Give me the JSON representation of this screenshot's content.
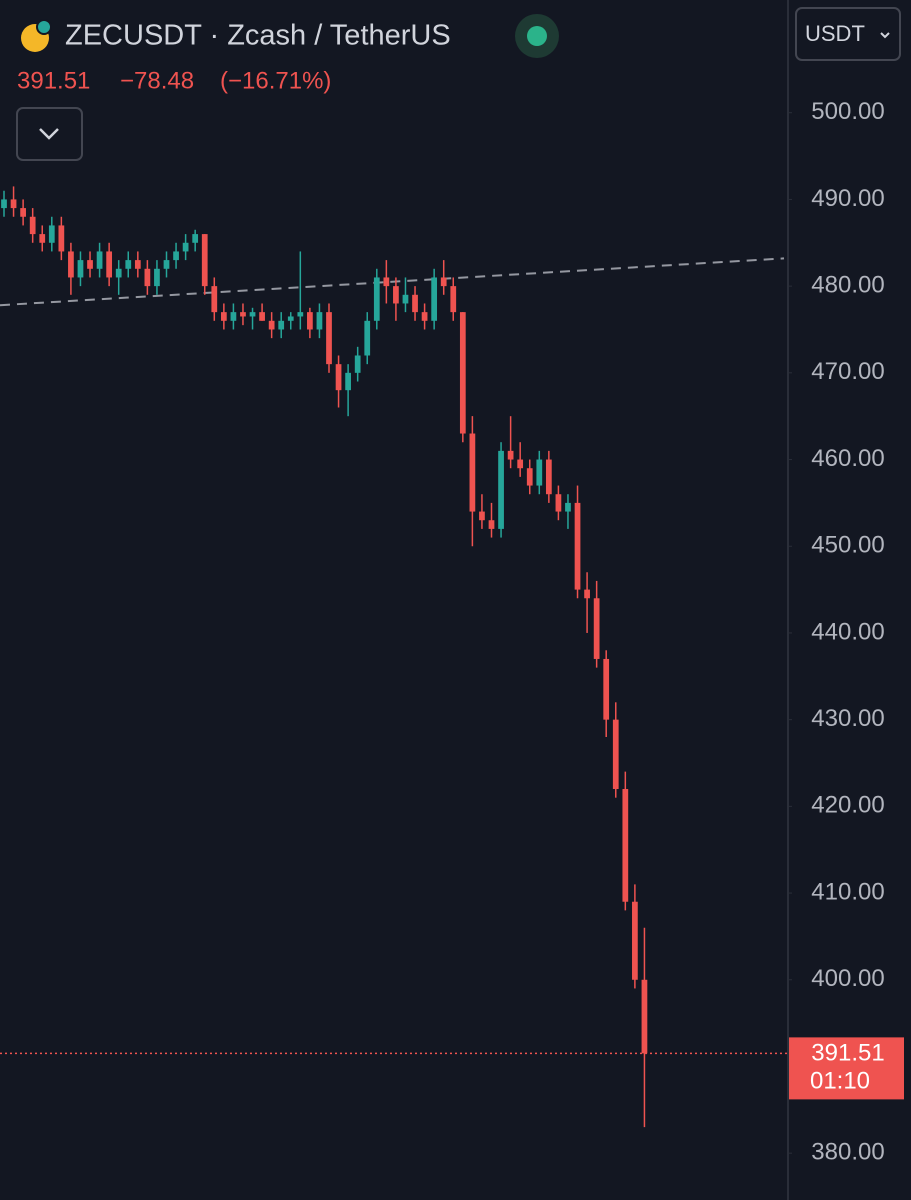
{
  "header": {
    "symbol": "ZECUSDT · Zcash / TetherUS",
    "price": "391.51",
    "change": "−78.48",
    "change_pct": "(−16.71%)",
    "currency": "USDT"
  },
  "chart_data": {
    "type": "candlestick",
    "up_color": "#26a69a",
    "down_color": "#ef5350",
    "grid": false,
    "ylim": [
      374.6,
      513.0
    ],
    "yticks": [
      {
        "value": 380,
        "label": "380.00"
      },
      {
        "value": 390,
        "label": "390.00"
      },
      {
        "value": 400,
        "label": "400.00"
      },
      {
        "value": 410,
        "label": "410.00"
      },
      {
        "value": 420,
        "label": "420.00"
      },
      {
        "value": 430,
        "label": "430.00"
      },
      {
        "value": 440,
        "label": "440.00"
      },
      {
        "value": 450,
        "label": "450.00"
      },
      {
        "value": 460,
        "label": "460.00"
      },
      {
        "value": 470,
        "label": "470.00"
      },
      {
        "value": 480,
        "label": "480.00"
      },
      {
        "value": 490,
        "label": "490.00"
      },
      {
        "value": 500,
        "label": "500.00"
      }
    ],
    "trendline": [
      477.8,
      483.2
    ],
    "countdown": "01:10",
    "ohlc": [
      [
        489,
        491,
        488,
        490
      ],
      [
        490,
        491.5,
        488,
        489
      ],
      [
        489,
        490,
        487,
        488
      ],
      [
        488,
        489,
        485,
        486
      ],
      [
        486,
        487,
        484,
        485
      ],
      [
        485,
        488,
        484,
        487
      ],
      [
        487,
        488,
        483,
        484
      ],
      [
        484,
        485,
        479,
        481
      ],
      [
        481,
        484,
        480,
        483
      ],
      [
        483,
        484,
        481,
        482
      ],
      [
        482,
        485,
        481,
        484
      ],
      [
        484,
        485,
        480,
        481
      ],
      [
        481,
        483,
        479,
        482
      ],
      [
        482,
        484,
        481,
        483
      ],
      [
        483,
        484,
        481,
        482
      ],
      [
        482,
        483,
        479,
        480
      ],
      [
        480,
        483,
        479,
        482
      ],
      [
        482,
        484,
        481,
        483
      ],
      [
        483,
        485,
        482,
        484
      ],
      [
        484,
        486,
        483,
        485
      ],
      [
        485,
        486.5,
        484,
        486
      ],
      [
        486,
        486,
        479,
        480
      ],
      [
        480,
        481,
        476,
        477
      ],
      [
        477,
        478,
        475,
        476
      ],
      [
        476,
        478,
        475,
        477
      ],
      [
        477,
        478,
        475.5,
        476.5
      ],
      [
        476.5,
        477.5,
        475,
        477
      ],
      [
        477,
        478,
        476,
        476
      ],
      [
        476,
        477,
        474,
        475
      ],
      [
        475,
        477,
        474,
        476
      ],
      [
        476,
        477,
        475,
        476.5
      ],
      [
        476.5,
        484,
        475,
        477
      ],
      [
        477,
        477.5,
        474,
        475
      ],
      [
        475,
        478,
        474,
        477
      ],
      [
        477,
        478,
        470,
        471
      ],
      [
        471,
        472,
        466,
        468
      ],
      [
        468,
        471,
        465,
        470
      ],
      [
        470,
        473,
        469,
        472
      ],
      [
        472,
        477,
        471,
        476
      ],
      [
        476,
        482,
        475,
        481
      ],
      [
        481,
        483,
        478,
        480
      ],
      [
        480,
        481,
        476,
        478
      ],
      [
        478,
        481,
        477,
        479
      ],
      [
        479,
        480,
        476,
        477
      ],
      [
        477,
        478,
        475,
        476
      ],
      [
        476,
        482,
        475,
        481
      ],
      [
        481,
        483,
        479,
        480
      ],
      [
        480,
        481,
        476,
        477
      ],
      [
        477,
        477,
        462,
        463
      ],
      [
        463,
        465,
        450,
        454
      ],
      [
        454,
        456,
        452,
        453
      ],
      [
        453,
        455,
        451,
        452
      ],
      [
        452,
        462,
        451,
        461
      ],
      [
        461,
        465,
        459,
        460
      ],
      [
        460,
        462,
        458,
        459
      ],
      [
        459,
        460,
        456,
        457
      ],
      [
        457,
        461,
        456,
        460
      ],
      [
        460,
        461,
        455,
        456
      ],
      [
        456,
        457,
        453,
        454
      ],
      [
        454,
        456,
        452,
        455
      ],
      [
        455,
        457,
        444,
        445
      ],
      [
        445,
        447,
        440,
        444
      ],
      [
        444,
        446,
        436,
        437
      ],
      [
        437,
        438,
        428,
        430
      ],
      [
        430,
        432,
        421,
        422
      ],
      [
        422,
        424,
        408,
        409
      ],
      [
        409,
        411,
        399,
        400
      ],
      [
        400,
        406,
        383,
        391.51
      ]
    ]
  }
}
